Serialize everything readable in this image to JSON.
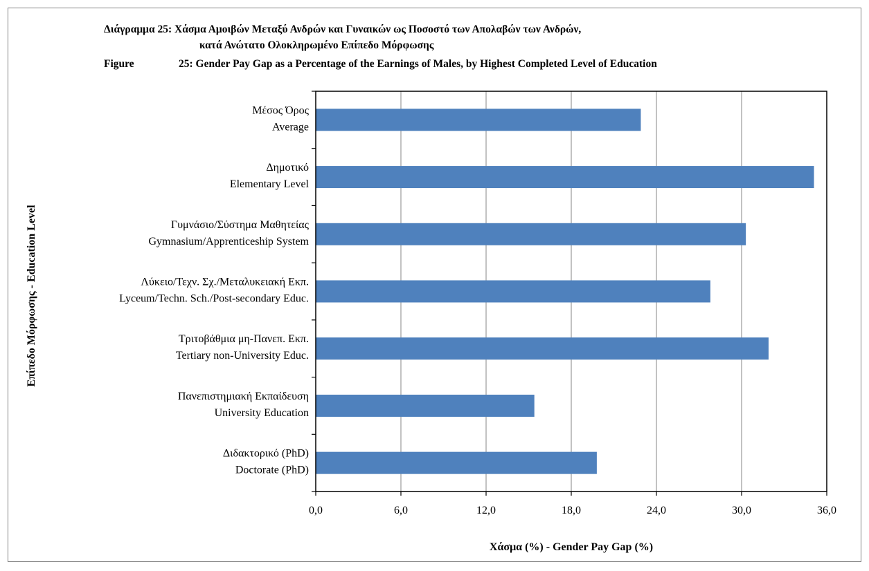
{
  "titles": {
    "greek_line1": "Διάγραμμα 25: Χάσμα Αμοιβών Μεταξύ Ανδρών και Γυναικών ως Ποσοστό των Απολαβών των Ανδρών,",
    "greek_line2": "κατά Ανώτατο Ολοκληρωμένο Επίπεδο Μόρφωσης",
    "english_prefix": "Figure",
    "english_line": "25: Gender Pay Gap as a Percentage of the Earnings of Males, by Highest Completed Level of Education"
  },
  "colors": {
    "bar": "#4f81bd",
    "grid": "#868686",
    "axis": "#000000",
    "frame": "#7f7f7f"
  },
  "chart_data": {
    "type": "bar",
    "orientation": "horizontal",
    "xlabel": "Χάσμα (%) - Gender Pay Gap (%)",
    "ylabel": "Επίπεδο Μόρφωσης - Education Level",
    "xlim": [
      0,
      36
    ],
    "xticks": [
      0,
      6,
      12,
      18,
      24,
      30,
      36
    ],
    "xtick_labels": [
      "0,0",
      "6,0",
      "12,0",
      "18,0",
      "24,0",
      "30,0",
      "36,0"
    ],
    "grid": "vertical",
    "categories": [
      [
        "Μέσος Όρος",
        "Average"
      ],
      [
        "Δημοτικό",
        "Elementary Level"
      ],
      [
        "Γυμνάσιο/Σύστημα Μαθητείας",
        "Gymnasium/Apprenticeship System"
      ],
      [
        "Λύκειο/Τεχν. Σχ./Μεταλυκειακή Εκπ.",
        "Lyceum/Techn. Sch./Post-secondary Educ."
      ],
      [
        "Τριτοβάθμια μη-Πανεπ. Εκπ.",
        "Tertiary non-University Educ."
      ],
      [
        "Πανεπιστημιακή Εκπαίδευση",
        "University Education"
      ],
      [
        "Διδακτορικό (PhD)",
        "Doctorate (PhD)"
      ]
    ],
    "values": [
      22.9,
      35.1,
      30.3,
      27.8,
      31.9,
      15.4,
      19.8
    ]
  }
}
